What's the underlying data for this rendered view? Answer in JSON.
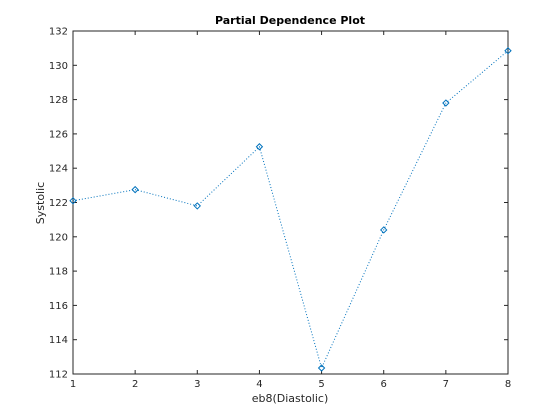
{
  "chart_data": {
    "type": "line",
    "title": "Partial Dependence Plot",
    "xlabel": "eb8(Diastolic)",
    "ylabel": "Systolic",
    "x": [
      1,
      2,
      3,
      4,
      5,
      6,
      7,
      8
    ],
    "series": [
      {
        "values": [
          122.1,
          122.75,
          121.8,
          125.25,
          112.35,
          120.4,
          127.8,
          130.85
        ]
      }
    ],
    "xlim": [
      1,
      8
    ],
    "ylim": [
      112,
      132
    ],
    "x_ticks": [
      1,
      2,
      3,
      4,
      5,
      6,
      7,
      8
    ],
    "y_ticks": [
      112,
      114,
      116,
      118,
      120,
      122,
      124,
      126,
      128,
      130,
      132
    ],
    "grid": false,
    "line_style": "dotted",
    "marker": "diamond",
    "colors": {
      "series": "#0072bd",
      "axis": "#262626"
    }
  }
}
